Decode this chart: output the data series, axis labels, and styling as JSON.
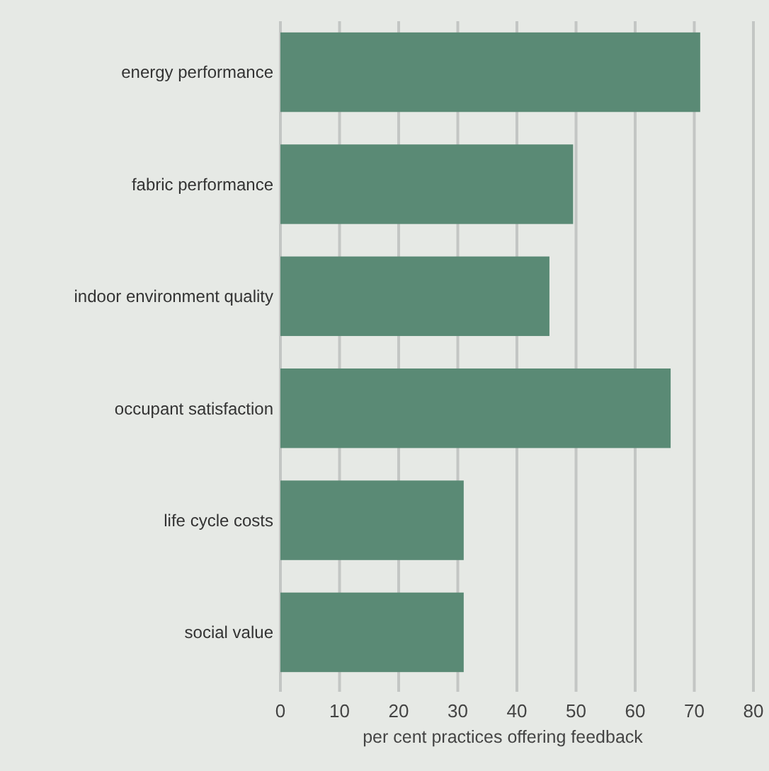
{
  "chart_data": {
    "type": "bar",
    "orientation": "horizontal",
    "categories": [
      "energy performance",
      "fabric performance",
      "indoor environment quality",
      "occupant satisfaction",
      "life cycle costs",
      "social value"
    ],
    "values": [
      71,
      49.5,
      45.5,
      66,
      31,
      31
    ],
    "color": "#5a8a75",
    "xlabel": "per cent practices offering feedback",
    "xlim": [
      0,
      80
    ],
    "xticks": [
      0,
      10,
      20,
      30,
      40,
      50,
      60,
      70,
      80
    ],
    "grid": "x"
  }
}
